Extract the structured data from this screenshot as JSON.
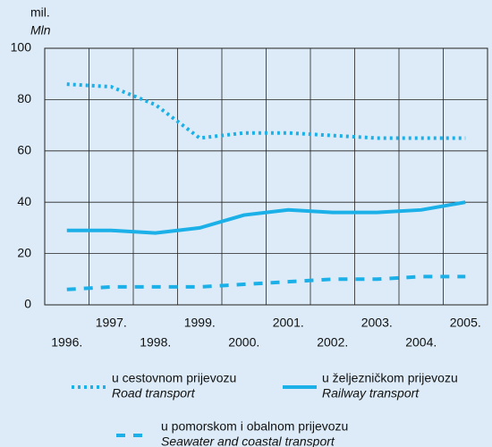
{
  "chart_data": {
    "type": "line",
    "y_label": "mil.",
    "y_label_en": "Mln",
    "categories": [
      "1996.",
      "1997.",
      "1998.",
      "1999.",
      "2000.",
      "2001.",
      "2002.",
      "2003.",
      "2004.",
      "2005."
    ],
    "series": [
      {
        "name": "u cestovnom prijevozu",
        "name_en": "Road transport",
        "color": "#1cb0e8",
        "dash": "dotted",
        "values": [
          86,
          85,
          78,
          65,
          67,
          67,
          66,
          65,
          65,
          65
        ]
      },
      {
        "name": "u željezničkom prijevozu",
        "name_en": "Railway transport",
        "color": "#1cb0e8",
        "dash": "solid",
        "values": [
          29,
          29,
          28,
          30,
          35,
          37,
          36,
          36,
          37,
          40
        ]
      },
      {
        "name": "u pomorskom i obalnom prijevozu",
        "name_en": "Seawater and coastal transport",
        "color": "#1cb0e8",
        "dash": "dashed",
        "values": [
          6,
          7,
          7,
          7,
          8,
          9,
          10,
          10,
          11,
          11
        ]
      }
    ],
    "ylim": [
      0,
      100
    ],
    "yticks": [
      0,
      20,
      40,
      60,
      80,
      100
    ],
    "grid": true
  }
}
